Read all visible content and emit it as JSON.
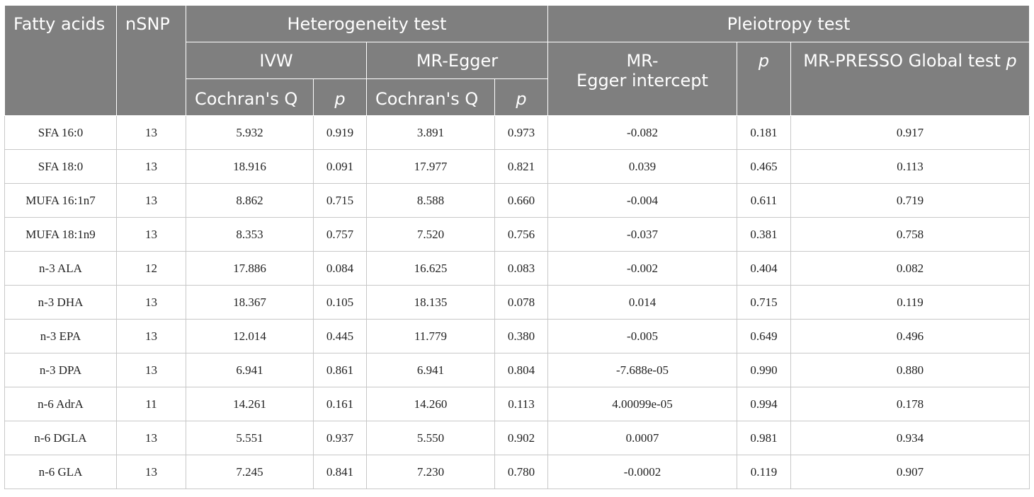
{
  "table": {
    "headers": {
      "fatty_acids": "Fatty acids",
      "nsnp": "nSNP",
      "heterogeneity_test": "Heterogeneity test",
      "pleiotropy_test": "Pleiotropy test",
      "ivw": "IVW",
      "mr_egger": "MR-Egger",
      "ivw_cochran_q": "Cochran's Q",
      "ivw_p": "p",
      "egger_cochran_q": "Cochran's Q",
      "egger_p": "p",
      "egger_intercept_line1": "MR-",
      "egger_intercept_line2": "Egger intercept",
      "pleiotropy_p": "p",
      "presso_label": "MR-PRESSO Global test",
      "presso_p": "p"
    },
    "rows": [
      {
        "fatty_acid": "SFA 16:0",
        "nsnp": "13",
        "ivw_q": "5.932",
        "ivw_p": "0.919",
        "egger_q": "3.891",
        "egger_p": "0.973",
        "egger_intercept": "-0.082",
        "pleio_p": "0.181",
        "presso_p": "0.917"
      },
      {
        "fatty_acid": "SFA 18:0",
        "nsnp": "13",
        "ivw_q": "18.916",
        "ivw_p": "0.091",
        "egger_q": "17.977",
        "egger_p": "0.821",
        "egger_intercept": "0.039",
        "pleio_p": "0.465",
        "presso_p": "0.113"
      },
      {
        "fatty_acid": "MUFA 16:1n7",
        "nsnp": "13",
        "ivw_q": "8.862",
        "ivw_p": "0.715",
        "egger_q": "8.588",
        "egger_p": "0.660",
        "egger_intercept": "-0.004",
        "pleio_p": "0.611",
        "presso_p": "0.719"
      },
      {
        "fatty_acid": "MUFA 18:1n9",
        "nsnp": "13",
        "ivw_q": "8.353",
        "ivw_p": "0.757",
        "egger_q": "7.520",
        "egger_p": "0.756",
        "egger_intercept": "-0.037",
        "pleio_p": "0.381",
        "presso_p": "0.758"
      },
      {
        "fatty_acid": "n-3 ALA",
        "nsnp": "12",
        "ivw_q": "17.886",
        "ivw_p": "0.084",
        "egger_q": "16.625",
        "egger_p": "0.083",
        "egger_intercept": "-0.002",
        "pleio_p": "0.404",
        "presso_p": "0.082"
      },
      {
        "fatty_acid": "n-3 DHA",
        "nsnp": "13",
        "ivw_q": "18.367",
        "ivw_p": "0.105",
        "egger_q": "18.135",
        "egger_p": "0.078",
        "egger_intercept": "0.014",
        "pleio_p": "0.715",
        "presso_p": "0.119"
      },
      {
        "fatty_acid": "n-3 EPA",
        "nsnp": "13",
        "ivw_q": "12.014",
        "ivw_p": "0.445",
        "egger_q": "11.779",
        "egger_p": "0.380",
        "egger_intercept": "-0.005",
        "pleio_p": "0.649",
        "presso_p": "0.496"
      },
      {
        "fatty_acid": "n-3 DPA",
        "nsnp": "13",
        "ivw_q": "6.941",
        "ivw_p": "0.861",
        "egger_q": "6.941",
        "egger_p": "0.804",
        "egger_intercept": "-7.688e-05",
        "pleio_p": "0.990",
        "presso_p": "0.880"
      },
      {
        "fatty_acid": "n-6 AdrA",
        "nsnp": "11",
        "ivw_q": "14.261",
        "ivw_p": "0.161",
        "egger_q": "14.260",
        "egger_p": "0.113",
        "egger_intercept": "4.00099e-05",
        "pleio_p": "0.994",
        "presso_p": "0.178"
      },
      {
        "fatty_acid": "n-6 DGLA",
        "nsnp": "13",
        "ivw_q": "5.551",
        "ivw_p": "0.937",
        "egger_q": "5.550",
        "egger_p": "0.902",
        "egger_intercept": "0.0007",
        "pleio_p": "0.981",
        "presso_p": "0.934"
      },
      {
        "fatty_acid": "n-6 GLA",
        "nsnp": "13",
        "ivw_q": "7.245",
        "ivw_p": "0.841",
        "egger_q": "7.230",
        "egger_p": "0.780",
        "egger_intercept": "-0.0002",
        "pleio_p": "0.119",
        "presso_p": "0.907"
      }
    ]
  }
}
